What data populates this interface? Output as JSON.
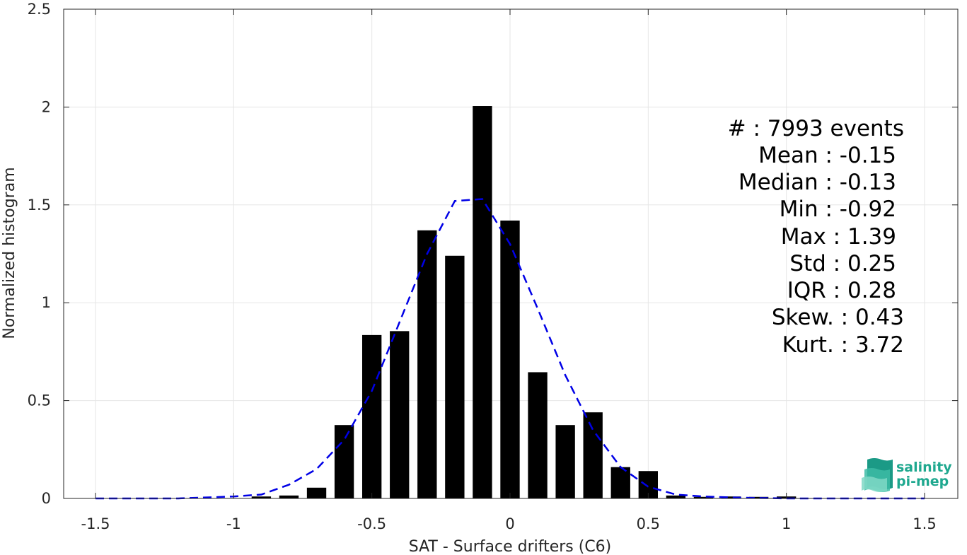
{
  "chart_data": {
    "type": "bar",
    "xlabel": "SAT - Surface drifters (C6)",
    "ylabel": "Normalized histogram",
    "xlim": [
      -1.5,
      1.5
    ],
    "ylim": [
      0,
      2.5
    ],
    "xticks": [
      "-1.5",
      "-1",
      "-0.5",
      "0",
      "0.5",
      "1",
      "1.5"
    ],
    "yticks": [
      "0",
      "0.5",
      "1",
      "1.5",
      "2",
      "2.5"
    ],
    "grid": true,
    "bar_width": 0.07,
    "bins": [
      {
        "x": -0.9,
        "y": 0.01
      },
      {
        "x": -0.8,
        "y": 0.015
      },
      {
        "x": -0.7,
        "y": 0.055
      },
      {
        "x": -0.6,
        "y": 0.375
      },
      {
        "x": -0.5,
        "y": 0.835
      },
      {
        "x": -0.4,
        "y": 0.855
      },
      {
        "x": -0.3,
        "y": 1.37
      },
      {
        "x": -0.2,
        "y": 1.24
      },
      {
        "x": -0.1,
        "y": 2.005
      },
      {
        "x": 0.0,
        "y": 1.42
      },
      {
        "x": 0.1,
        "y": 0.645
      },
      {
        "x": 0.2,
        "y": 0.375
      },
      {
        "x": 0.3,
        "y": 0.44
      },
      {
        "x": 0.4,
        "y": 0.16
      },
      {
        "x": 0.5,
        "y": 0.14
      },
      {
        "x": 0.6,
        "y": 0.015
      },
      {
        "x": 0.7,
        "y": 0.008
      },
      {
        "x": 0.8,
        "y": 0.01
      },
      {
        "x": 0.9,
        "y": 0.008
      },
      {
        "x": 1.0,
        "y": 0.01
      }
    ],
    "fit_curve": {
      "color": "#0000e6",
      "style": "dashed",
      "x": [
        -1.5,
        -1.2,
        -1.0,
        -0.9,
        -0.8,
        -0.7,
        -0.6,
        -0.5,
        -0.4,
        -0.3,
        -0.2,
        -0.1,
        0.0,
        0.1,
        0.2,
        0.3,
        0.4,
        0.5,
        0.6,
        0.7,
        0.8,
        1.0,
        1.2,
        1.5
      ],
      "y": [
        0.0,
        0.0,
        0.01,
        0.02,
        0.07,
        0.15,
        0.3,
        0.55,
        0.9,
        1.25,
        1.52,
        1.53,
        1.3,
        0.97,
        0.63,
        0.35,
        0.16,
        0.06,
        0.02,
        0.01,
        0.005,
        0.0,
        0.0,
        0.0
      ]
    },
    "bar_color": "#000000"
  },
  "stats": [
    "#  : 7993 events",
    "Mean : -0.15",
    "Median : -0.13",
    "Min : -0.92",
    "Max : 1.39",
    "Std : 0.25",
    "IQR : 0.28",
    "Skew. : 0.43",
    "Kurt. : 3.72"
  ],
  "logo": {
    "line1": "salinity",
    "line2": "pi-mep",
    "color": "#1fa88f"
  }
}
